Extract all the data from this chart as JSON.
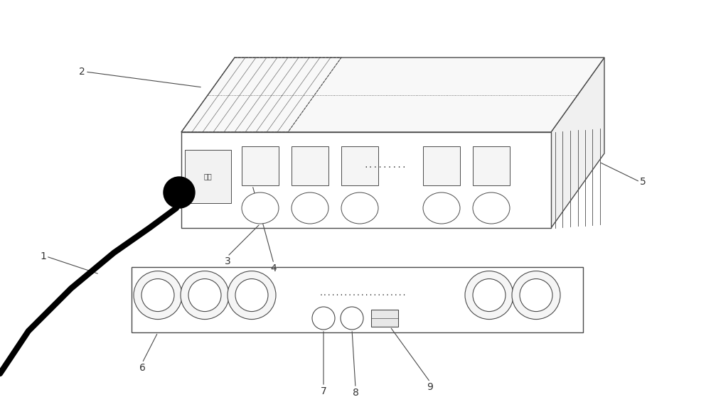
{
  "bg_color": "#ffffff",
  "line_color": "#4a4a4a",
  "label_color": "#333333",
  "fig_width": 10.0,
  "fig_height": 5.66,
  "switch_label": "开关",
  "dots_upper": ".........",
  "dots_lower": "....................."
}
